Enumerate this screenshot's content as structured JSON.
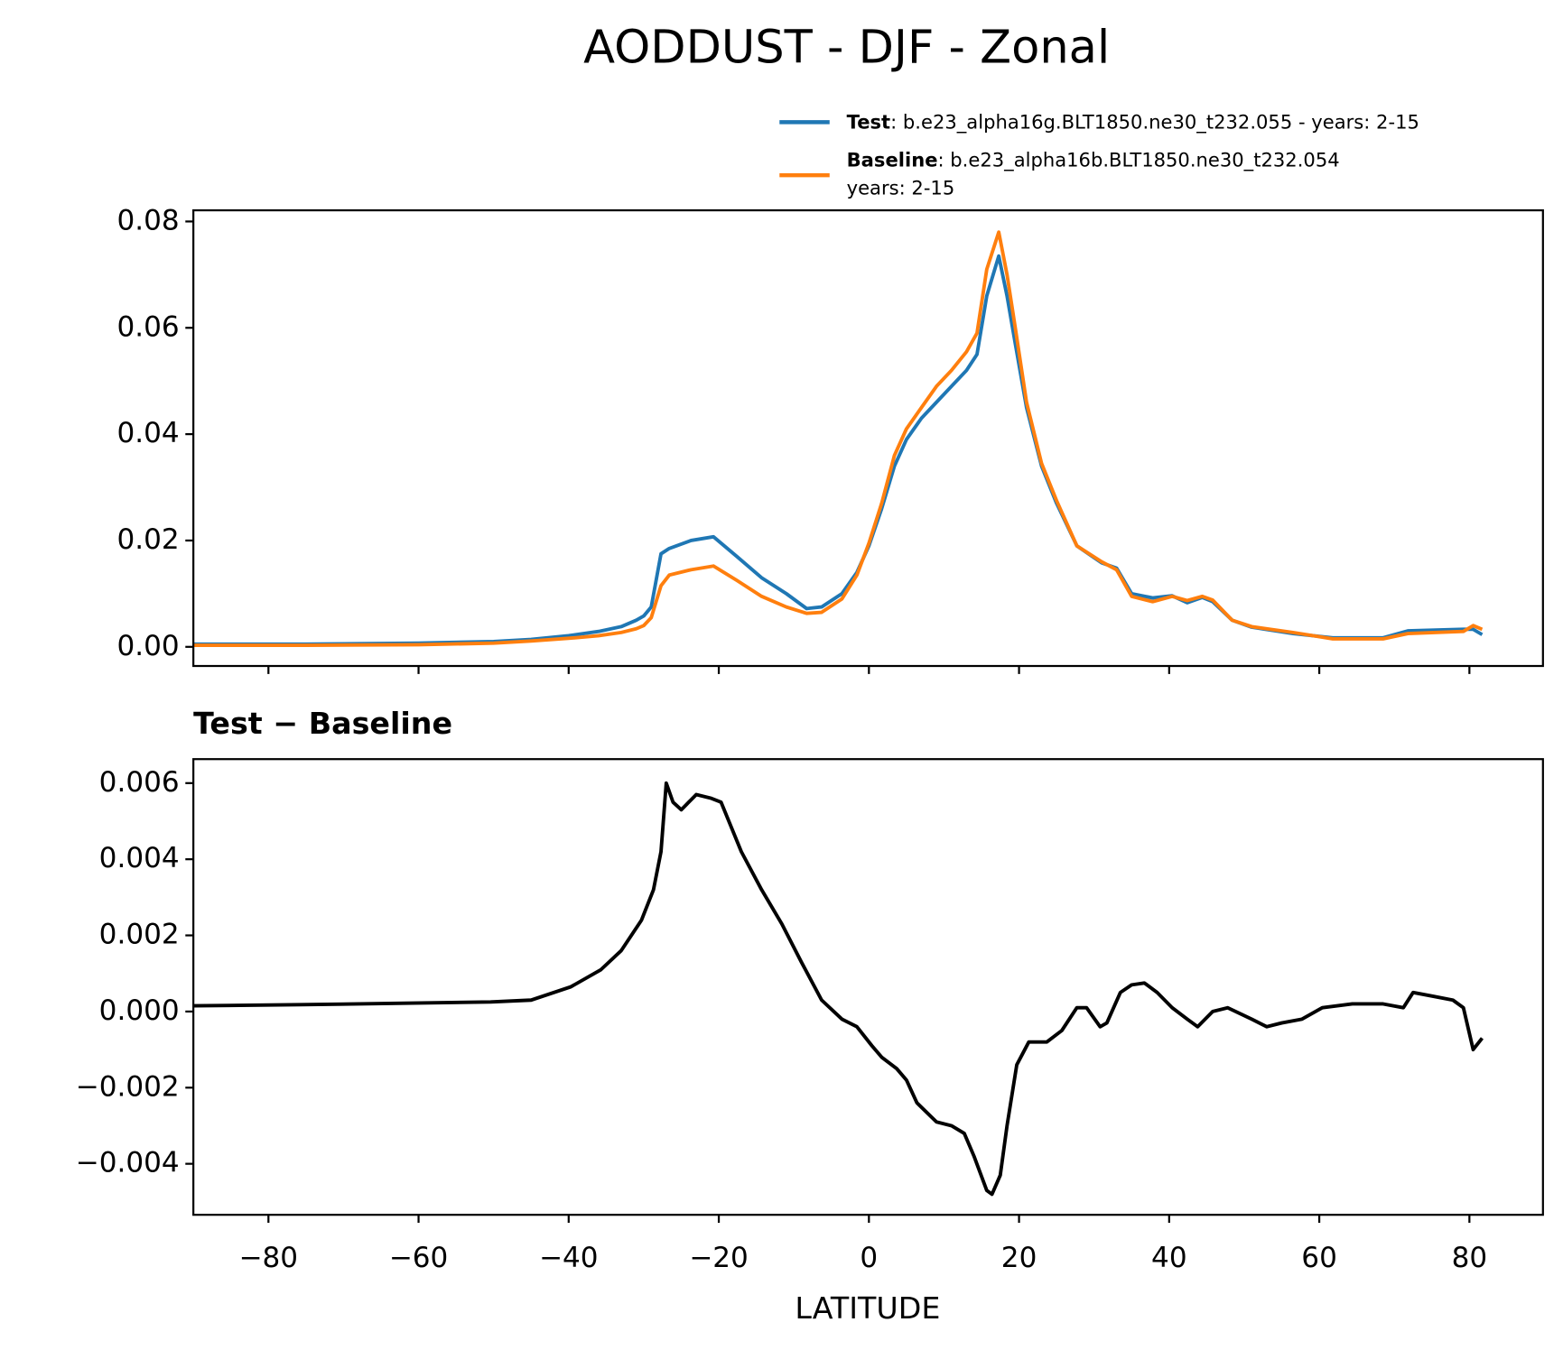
{
  "chart_data": [
    {
      "type": "line",
      "title": "AODDUST - DJF - Zonal",
      "x": [
        -90,
        -75,
        -60,
        -50,
        -45,
        -40,
        -36,
        -33,
        -31,
        -30,
        -29,
        -27.7,
        -26.6,
        -23.7,
        -20.7,
        -17.6,
        -14.3,
        -11,
        -8.3,
        -6.3,
        -3.6,
        -1.6,
        0,
        1.7,
        3.4,
        5,
        7,
        9,
        11,
        13,
        14.4,
        15.7,
        17.3,
        18.4,
        19.5,
        21,
        23,
        25,
        27.7,
        31,
        33,
        35,
        37.8,
        40.4,
        42.4,
        44.4,
        45.8,
        48.4,
        51,
        56.5,
        61.8,
        68.5,
        71.8,
        79.2,
        80.5,
        81.7
      ],
      "series": [
        {
          "name": "Test",
          "detail": ": b.e23_alpha16g.BLT1850.ne30_t232.055 - years: 2-15",
          "color": "#1f77b4",
          "values": [
            0.0005,
            0.0005,
            0.0007,
            0.001,
            0.0014,
            0.0021,
            0.0029,
            0.0038,
            0.005,
            0.0058,
            0.0075,
            0.0175,
            0.0185,
            0.02,
            0.0207,
            0.017,
            0.013,
            0.01,
            0.0072,
            0.0075,
            0.01,
            0.014,
            0.019,
            0.026,
            0.034,
            0.039,
            0.043,
            0.046,
            0.049,
            0.052,
            0.055,
            0.066,
            0.0735,
            0.066,
            0.057,
            0.045,
            0.034,
            0.027,
            0.019,
            0.0158,
            0.0148,
            0.01,
            0.0092,
            0.0096,
            0.0083,
            0.0093,
            0.0085,
            0.005,
            0.0037,
            0.0025,
            0.0017,
            0.0017,
            0.003,
            0.0033,
            0.0033,
            0.0023
          ]
        },
        {
          "name": "Baseline",
          "detail": [
            ": b.e23_alpha16b.BLT1850.ne30_t232.054",
            "years: 2-15"
          ],
          "color": "#ff7f0e",
          "values": [
            0.0003,
            0.0003,
            0.0004,
            0.0007,
            0.0011,
            0.0016,
            0.0021,
            0.0027,
            0.0034,
            0.004,
            0.0055,
            0.0115,
            0.0135,
            0.0145,
            0.0152,
            0.0125,
            0.0095,
            0.0075,
            0.0063,
            0.0065,
            0.009,
            0.0135,
            0.0195,
            0.027,
            0.036,
            0.041,
            0.045,
            0.049,
            0.052,
            0.0555,
            0.059,
            0.071,
            0.078,
            0.07,
            0.06,
            0.046,
            0.0345,
            0.0275,
            0.019,
            0.016,
            0.0145,
            0.0095,
            0.0085,
            0.0095,
            0.0087,
            0.0095,
            0.0088,
            0.005,
            0.0038,
            0.0027,
            0.0015,
            0.0015,
            0.0025,
            0.0029,
            0.004,
            0.0033
          ]
        }
      ],
      "xlim": [
        -90,
        89.8
      ],
      "xticks": [
        {
          "value": -80,
          "label": "−80"
        },
        {
          "value": -60,
          "label": "−60"
        },
        {
          "value": -40,
          "label": "−40"
        },
        {
          "value": -20,
          "label": "−20"
        },
        0,
        20,
        40,
        60,
        80
      ],
      "ylim": [
        -0.0036,
        0.0821
      ],
      "yticks": [
        {
          "value": 0,
          "label": "0.00"
        },
        0.02,
        0.04,
        0.06,
        0.08
      ],
      "legend": "upper right"
    },
    {
      "type": "line",
      "title": "Test − Baseline",
      "xlabel": "LATITUDE",
      "x": [
        -90,
        -75.7,
        -50.4,
        -45,
        -39.7,
        -35.7,
        -33,
        -30.3,
        -28.7,
        -27.7,
        -27,
        -26.1,
        -25,
        -23,
        -21,
        -19.7,
        -17,
        -14.3,
        -11.6,
        -9,
        -6.3,
        -3.6,
        -1.6,
        0.4,
        1.7,
        3.7,
        5,
        6.4,
        9,
        11,
        12.7,
        14,
        15.7,
        16.4,
        17.5,
        18.4,
        19.7,
        21.3,
        23.7,
        25.7,
        27.7,
        29,
        30.8,
        31.7,
        33.5,
        35,
        36.7,
        38.4,
        40.4,
        42.4,
        43.8,
        45.8,
        47.8,
        51,
        53,
        55,
        57.7,
        60.4,
        64.4,
        68.5,
        71.2,
        72.5,
        75.2,
        77.8,
        79.2,
        80.5,
        81.7
      ],
      "series": [
        {
          "name": "Test − Baseline",
          "color": "#000000",
          "values": [
            0.00015,
            0.00018,
            0.00025,
            0.0003,
            0.00065,
            0.0011,
            0.0016,
            0.0024,
            0.0032,
            0.0042,
            0.006,
            0.0055,
            0.0053,
            0.0057,
            0.0056,
            0.0055,
            0.0042,
            0.0032,
            0.0023,
            0.0013,
            0.0003,
            -0.0002,
            -0.0004,
            -0.0009,
            -0.0012,
            -0.0015,
            -0.0018,
            -0.0024,
            -0.0029,
            -0.003,
            -0.0032,
            -0.0038,
            -0.0047,
            -0.0048,
            -0.0043,
            -0.003,
            -0.0014,
            -0.0008,
            -0.0008,
            -0.0005,
            0.0001,
            0.0001,
            -0.0004,
            -0.0003,
            0.0005,
            0.0007,
            0.00075,
            0.0005,
            0.0001,
            -0.0002,
            -0.0004,
            0,
            0.0001,
            -0.0002,
            -0.0004,
            -0.0003,
            -0.0002,
            0.0001,
            0.0002,
            0.0002,
            0.0001,
            0.0005,
            0.0004,
            0.0003,
            0.0001,
            -0.001,
            -0.0007
          ]
        }
      ],
      "xlim": [
        -90,
        89.8
      ],
      "xticks": [
        {
          "value": -80,
          "label": "−80"
        },
        {
          "value": -60,
          "label": "−60"
        },
        {
          "value": -40,
          "label": "−40"
        },
        {
          "value": -20,
          "label": "−20"
        },
        0,
        20,
        40,
        60,
        80
      ],
      "ylim": [
        -0.00534,
        0.00663
      ],
      "yticks": [
        {
          "value": -0.004,
          "label": "−0.004"
        },
        {
          "value": -0.002,
          "label": "−0.002"
        },
        {
          "value": 0,
          "label": "0.000"
        },
        0.002,
        0.004,
        0.006
      ]
    }
  ]
}
